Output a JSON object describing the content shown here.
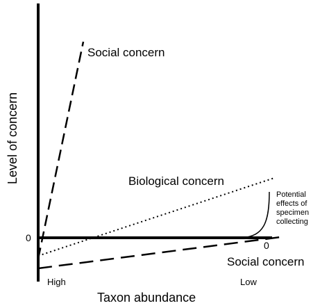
{
  "diagram": {
    "y_axis_title": "Level of concern",
    "x_axis_title": "Taxon abundance",
    "x_axis_left_label": "High",
    "x_axis_right_label": "Low",
    "y_zero_label": "0",
    "x_zero_label": "0",
    "lines": [
      {
        "name": "Social concern",
        "style": "dashed",
        "position": "rising steeply above axis"
      },
      {
        "name": "Biological concern",
        "style": "dotted",
        "position": "rising gradually"
      },
      {
        "name": "Social concern",
        "style": "dashed",
        "position": "below axis, approaching zero"
      }
    ],
    "annotation": {
      "line1": "Potential",
      "line2": "effects of",
      "line3": "specimen",
      "line4": "collecting"
    },
    "colors": {
      "ink": "#000000",
      "background": "#ffffff"
    }
  }
}
